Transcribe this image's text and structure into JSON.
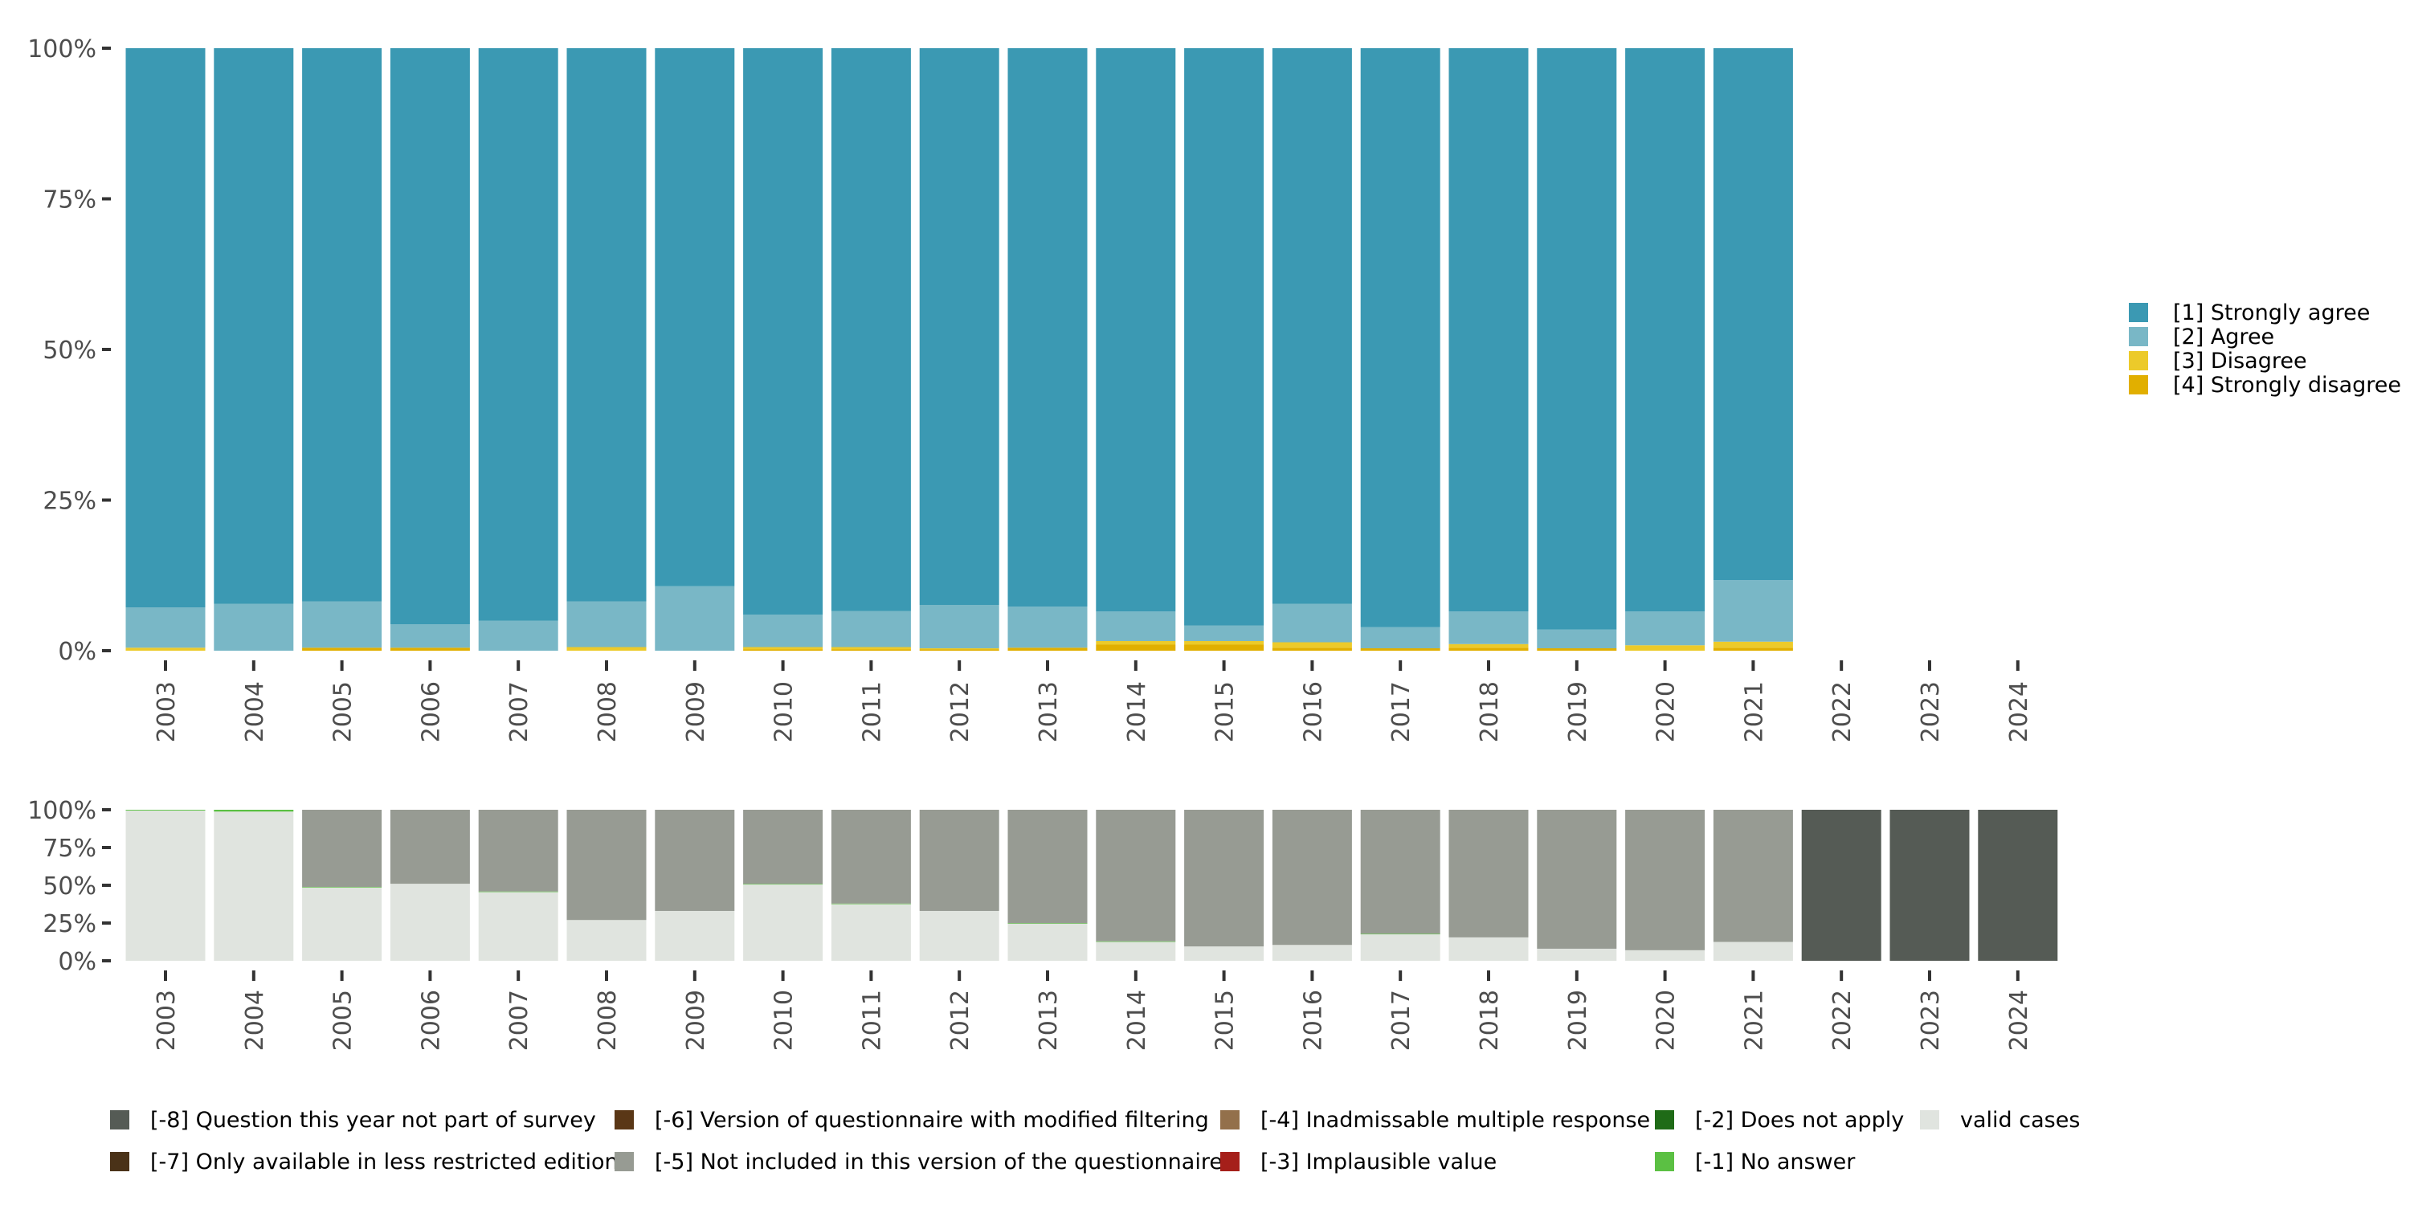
{
  "chart_data": [
    {
      "type": "bar",
      "stacked": true,
      "title": "",
      "xlabel": "",
      "ylabel": "",
      "ylim": [
        0,
        100
      ],
      "y_ticks": [
        "0%",
        "25%",
        "50%",
        "75%",
        "100%"
      ],
      "categories": [
        "2003",
        "2004",
        "2005",
        "2006",
        "2007",
        "2008",
        "2009",
        "2010",
        "2011",
        "2012",
        "2013",
        "2014",
        "2015",
        "2016",
        "2017",
        "2018",
        "2019",
        "2020",
        "2021",
        "2022",
        "2023",
        "2024"
      ],
      "legend_position": "right",
      "series": [
        {
          "name": "[4] Strongly disagree",
          "color": "#e1af00",
          "values": [
            0,
            0,
            0.5,
            0.5,
            0,
            0,
            0,
            0.2,
            0.2,
            0.2,
            0.5,
            1.0,
            1.0,
            0.5,
            0.4,
            0.5,
            0.4,
            0,
            0.5,
            null,
            null,
            null
          ]
        },
        {
          "name": "[3] Disagree",
          "color": "#ecca2a",
          "values": [
            0.5,
            0,
            0,
            0,
            0,
            0.6,
            0,
            0.4,
            0.4,
            0.2,
            0,
            0.6,
            0.6,
            0.9,
            0,
            0.6,
            0,
            0.9,
            1.0,
            null,
            null,
            null
          ]
        },
        {
          "name": "[2] Agree",
          "color": "#79b7c6",
          "values": [
            6.7,
            7.8,
            7.7,
            3.9,
            5.0,
            7.6,
            10.7,
            5.4,
            6.0,
            7.2,
            6.8,
            4.9,
            2.6,
            6.4,
            3.5,
            5.4,
            3.1,
            5.6,
            10.2,
            null,
            null,
            null
          ]
        },
        {
          "name": "[1] Strongly agree",
          "color": "#3b99b3",
          "values": [
            92.8,
            92.2,
            91.8,
            95.6,
            95.0,
            91.8,
            89.3,
            94.0,
            93.4,
            92.4,
            92.7,
            93.5,
            95.8,
            92.2,
            96.1,
            93.5,
            96.5,
            93.5,
            88.3,
            null,
            null,
            null
          ]
        }
      ]
    },
    {
      "type": "bar",
      "stacked": true,
      "title": "",
      "xlabel": "",
      "ylabel": "",
      "ylim": [
        0,
        100
      ],
      "y_ticks": [
        "0%",
        "25%",
        "50%",
        "75%",
        "100%"
      ],
      "categories": [
        "2003",
        "2004",
        "2005",
        "2006",
        "2007",
        "2008",
        "2009",
        "2010",
        "2011",
        "2012",
        "2013",
        "2014",
        "2015",
        "2016",
        "2017",
        "2018",
        "2019",
        "2020",
        "2021",
        "2022",
        "2023",
        "2024"
      ],
      "legend_position": "bottom",
      "series": [
        {
          "name": "valid cases",
          "color": "#e0e4df",
          "values": [
            99.5,
            98.8,
            48.5,
            51.0,
            45.5,
            27.0,
            33.0,
            50.5,
            37.5,
            33.0,
            24.5,
            12.5,
            9.5,
            10.5,
            17.5,
            15.5,
            8.0,
            7.0,
            12.5,
            0,
            0,
            0
          ]
        },
        {
          "name": "[-1] No answer",
          "color": "#5bc043",
          "values": [
            0.5,
            1.2,
            0.4,
            0,
            0.4,
            0,
            0,
            0.4,
            0.4,
            0,
            0.4,
            0.4,
            0,
            0,
            0.4,
            0,
            0,
            0,
            0,
            0,
            0,
            0
          ]
        },
        {
          "name": "[-2] Does not apply",
          "color": "#1f6b17",
          "values": [
            0,
            0,
            0,
            0,
            0,
            0,
            0,
            0,
            0,
            0,
            0,
            0,
            0,
            0,
            0,
            0,
            0,
            0,
            0,
            0,
            0,
            0
          ]
        },
        {
          "name": "[-3] Implausible value",
          "color": "#a51f1a",
          "values": [
            0,
            0,
            0,
            0,
            0,
            0,
            0,
            0,
            0,
            0,
            0,
            0,
            0,
            0,
            0,
            0,
            0,
            0,
            0,
            0,
            0,
            0
          ]
        },
        {
          "name": "[-4] Inadmissable multiple response",
          "color": "#93704b",
          "values": [
            0,
            0,
            0,
            0,
            0,
            0,
            0,
            0,
            0,
            0,
            0,
            0,
            0,
            0,
            0,
            0,
            0,
            0,
            0,
            0,
            0,
            0
          ]
        },
        {
          "name": "[-5] Not included in this version of the questionnaire",
          "color": "#979b93",
          "values": [
            0,
            0,
            51.1,
            49.0,
            54.1,
            73.0,
            67.0,
            49.1,
            62.1,
            67.0,
            75.1,
            87.1,
            90.5,
            89.5,
            82.1,
            84.5,
            92.0,
            93.0,
            87.5,
            0,
            0,
            0
          ]
        },
        {
          "name": "[-6] Version of questionnaire with modified filtering",
          "color": "#5a3716",
          "values": [
            0,
            0,
            0,
            0,
            0,
            0,
            0,
            0,
            0,
            0,
            0,
            0,
            0,
            0,
            0,
            0,
            0,
            0,
            0,
            0,
            0,
            0
          ]
        },
        {
          "name": "[-7] Only available in less restricted edition",
          "color": "#4a3218",
          "values": [
            0,
            0,
            0,
            0,
            0,
            0,
            0,
            0,
            0,
            0,
            0,
            0,
            0,
            0,
            0,
            0,
            0,
            0,
            0,
            0,
            0,
            0
          ]
        },
        {
          "name": "[-8] Question this year not part of survey",
          "color": "#555b55",
          "values": [
            0,
            0,
            0,
            0,
            0,
            0,
            0,
            0,
            0,
            0,
            0,
            0,
            0,
            0,
            0,
            0,
            0,
            0,
            0,
            100,
            100,
            100
          ]
        }
      ],
      "legend_order": [
        "[-8] Question this year not part of survey",
        "[-6] Version of questionnaire with modified filtering",
        "[-4] Inadmissable multiple response",
        "[-2] Does not apply",
        "valid cases",
        "[-7] Only available in less restricted edition",
        "[-5] Not included in this version of the questionnaire",
        "[-3] Implausible value",
        "[-1] No answer"
      ]
    }
  ]
}
